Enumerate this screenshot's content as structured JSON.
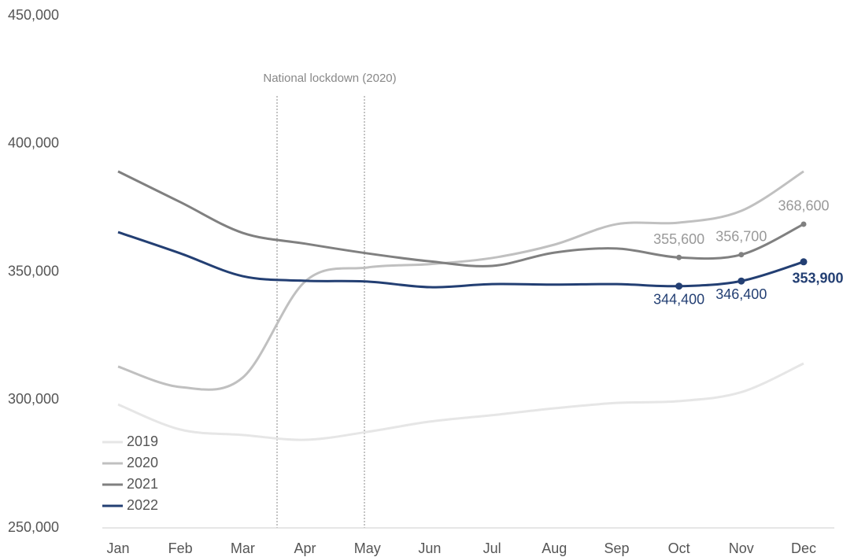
{
  "chart_data": {
    "type": "line",
    "annotation": "National lockdown (2020)",
    "categories": [
      "Jan",
      "Feb",
      "Mar",
      "Apr",
      "May",
      "Jun",
      "Jul",
      "Aug",
      "Sep",
      "Oct",
      "Nov",
      "Dec"
    ],
    "series": [
      {
        "name": "2019",
        "color": "#e6e6e6",
        "values": [
          298200,
          288400,
          286300,
          284400,
          287500,
          291500,
          294000,
          296700,
          298800,
          299500,
          303000,
          314200
        ]
      },
      {
        "name": "2020",
        "color": "#c0c0c0",
        "values": [
          313000,
          305000,
          308700,
          346200,
          351700,
          353000,
          355400,
          360600,
          368600,
          369200,
          373800,
          389200
        ]
      },
      {
        "name": "2021",
        "color": "#808080",
        "values": [
          389200,
          377200,
          365200,
          361000,
          357200,
          354100,
          352300,
          357500,
          359100,
          355600,
          356700,
          368600
        ],
        "value_labels": [
          null,
          null,
          null,
          null,
          null,
          null,
          null,
          null,
          null,
          "355,600",
          "356,700",
          "368,600"
        ]
      },
      {
        "name": "2022",
        "color": "#233f73",
        "values": [
          365500,
          357200,
          348300,
          346500,
          346200,
          344000,
          345200,
          345000,
          345200,
          344400,
          346400,
          353900
        ],
        "value_labels": [
          null,
          null,
          null,
          null,
          null,
          null,
          null,
          null,
          null,
          "344,400",
          "346,400",
          "353,900"
        ]
      }
    ],
    "ylim": [
      250000,
      450000
    ],
    "yticks": [
      {
        "value": 250000,
        "label": "250,000"
      },
      {
        "value": 300000,
        "label": "300,000"
      },
      {
        "value": 350000,
        "label": "350,000"
      },
      {
        "value": 400000,
        "label": "400,000"
      },
      {
        "value": 450000,
        "label": "450,000"
      }
    ],
    "grid": false,
    "legend": "lower left"
  }
}
